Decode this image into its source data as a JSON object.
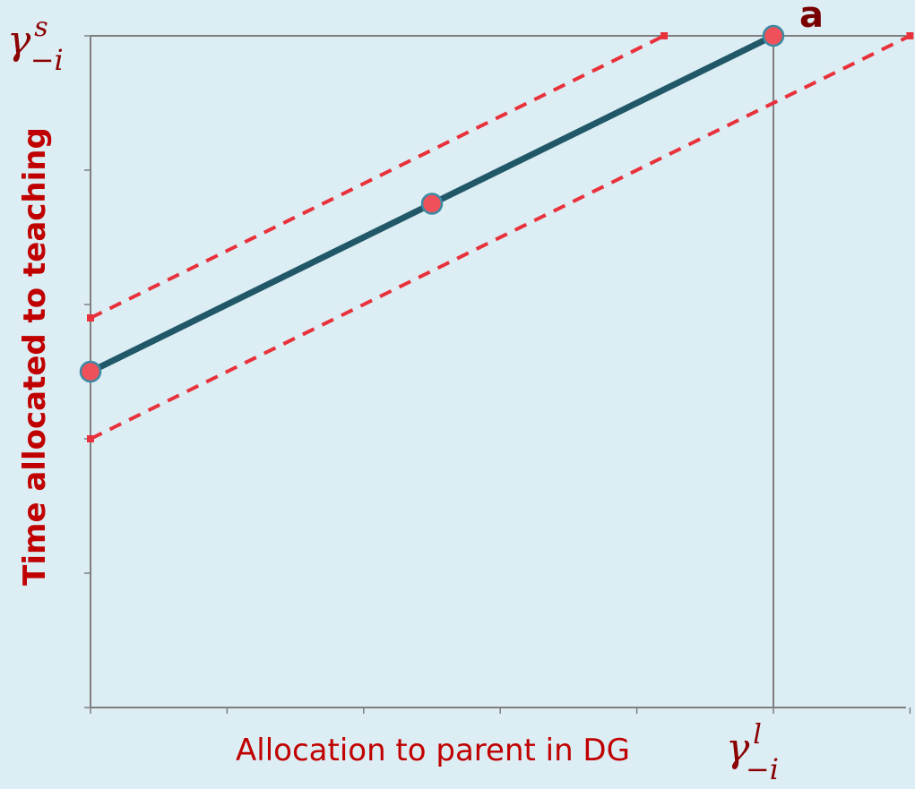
{
  "chart_data": {
    "type": "line",
    "xlabel": "Allocation to parent in DG",
    "ylabel": "Time allocated to teaching",
    "xlim": [
      0,
      6
    ],
    "ylim": [
      0,
      5
    ],
    "x_tick_values": [
      0,
      1,
      2,
      3,
      4,
      5,
      6
    ],
    "y_tick_values": [
      0,
      1,
      2,
      3,
      4,
      5
    ],
    "x_reference": {
      "value": 5,
      "symbol": "γ",
      "superscript": "l",
      "subscript": "−i"
    },
    "y_reference": {
      "value": 5,
      "symbol": "γ",
      "superscript": "s",
      "subscript": "−i"
    },
    "series": [
      {
        "style": "solid",
        "color": "#215868",
        "points": [
          {
            "x": 0,
            "y": 2.5
          },
          {
            "x": 2.5,
            "y": 3.75
          },
          {
            "x": 5,
            "y": 5
          }
        ]
      },
      {
        "style": "dashed",
        "color": "#e8313a",
        "points": [
          {
            "x": 0,
            "y": 2.9
          },
          {
            "x": 4.2,
            "y": 5
          }
        ]
      },
      {
        "style": "dashed",
        "color": "#e8313a",
        "points": [
          {
            "x": 0,
            "y": 2.0
          },
          {
            "x": 6,
            "y": 5
          }
        ]
      }
    ],
    "markers": [
      {
        "x": 0,
        "y": 2.5
      },
      {
        "x": 2.5,
        "y": 3.75
      },
      {
        "x": 5,
        "y": 5
      }
    ],
    "annotations": [
      {
        "text": "a",
        "x": 5,
        "y": 5
      }
    ],
    "grid": false,
    "legend": "none"
  }
}
